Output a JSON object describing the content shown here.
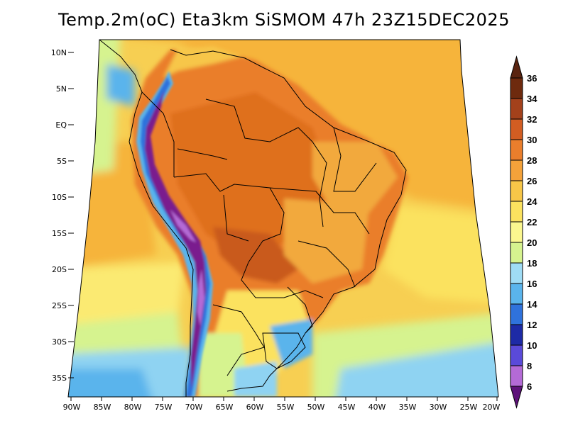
{
  "title": "Temp.2m(oC) Eta3km SiSMOM 47h 23Z15DEC2025",
  "colors": {
    "ocean_warm": "#f6b43a",
    "ocean_mid": "#f7cf52",
    "ocean_cool": "#fbea72",
    "pale_yellow": "#fbf58f",
    "light_green": "#d6f38f",
    "light_blue": "#8fd3f2",
    "sky_blue": "#5ab4ec",
    "blue": "#2f72dc",
    "navy": "#1e2fa8",
    "land_hot": "#e98a2c",
    "land_hotter": "#df6f1f",
    "land_warm": "#f2a93c",
    "purple": "#7a2a9e",
    "violet": "#b46ad6",
    "border": "#000000"
  },
  "lat_ticks": [
    {
      "value": 10,
      "label": "10N"
    },
    {
      "value": 5,
      "label": "5N"
    },
    {
      "value": 0,
      "label": "EQ"
    },
    {
      "value": -5,
      "label": "5S"
    },
    {
      "value": -10,
      "label": "10S"
    },
    {
      "value": -15,
      "label": "15S"
    },
    {
      "value": -20,
      "label": "20S"
    },
    {
      "value": -25,
      "label": "25S"
    },
    {
      "value": -30,
      "label": "30S"
    },
    {
      "value": -35,
      "label": "35S"
    }
  ],
  "lon_ticks": [
    {
      "value": -90,
      "label": "90W"
    },
    {
      "value": -85,
      "label": "85W"
    },
    {
      "value": -80,
      "label": "80W"
    },
    {
      "value": -75,
      "label": "75W"
    },
    {
      "value": -70,
      "label": "70W"
    },
    {
      "value": -65,
      "label": "65W"
    },
    {
      "value": -60,
      "label": "60W"
    },
    {
      "value": -55,
      "label": "55W"
    },
    {
      "value": -50,
      "label": "50W"
    },
    {
      "value": -45,
      "label": "45W"
    },
    {
      "value": -40,
      "label": "40W"
    },
    {
      "value": -35,
      "label": "35W"
    },
    {
      "value": -30,
      "label": "30W"
    },
    {
      "value": -25,
      "label": "25W"
    },
    {
      "value": -20,
      "label": "20W"
    }
  ],
  "colorbar": [
    {
      "label": "36",
      "color": "#6e2a0e"
    },
    {
      "label": "34",
      "color": "#a3411b"
    },
    {
      "label": "32",
      "color": "#d25d22"
    },
    {
      "label": "30",
      "color": "#ea7e2c"
    },
    {
      "label": "28",
      "color": "#f4a23a"
    },
    {
      "label": "26",
      "color": "#f7c648"
    },
    {
      "label": "24",
      "color": "#fbe25f"
    },
    {
      "label": "22",
      "color": "#fbf78f"
    },
    {
      "label": "20",
      "color": "#d6f38f"
    },
    {
      "label": "18",
      "color": "#9fdcf5"
    },
    {
      "label": "16",
      "color": "#5ab4ec"
    },
    {
      "label": "14",
      "color": "#2f72dc"
    },
    {
      "label": "12",
      "color": "#1d2aa6"
    },
    {
      "label": "10",
      "color": "#5a4ad9"
    },
    {
      "label": "8",
      "color": "#b46ad6"
    },
    {
      "label": "6",
      "color": "#7a1e8e"
    }
  ],
  "colorbar_top_color": "#5a2410",
  "colorbar_bottom_color": "#5e127a"
}
